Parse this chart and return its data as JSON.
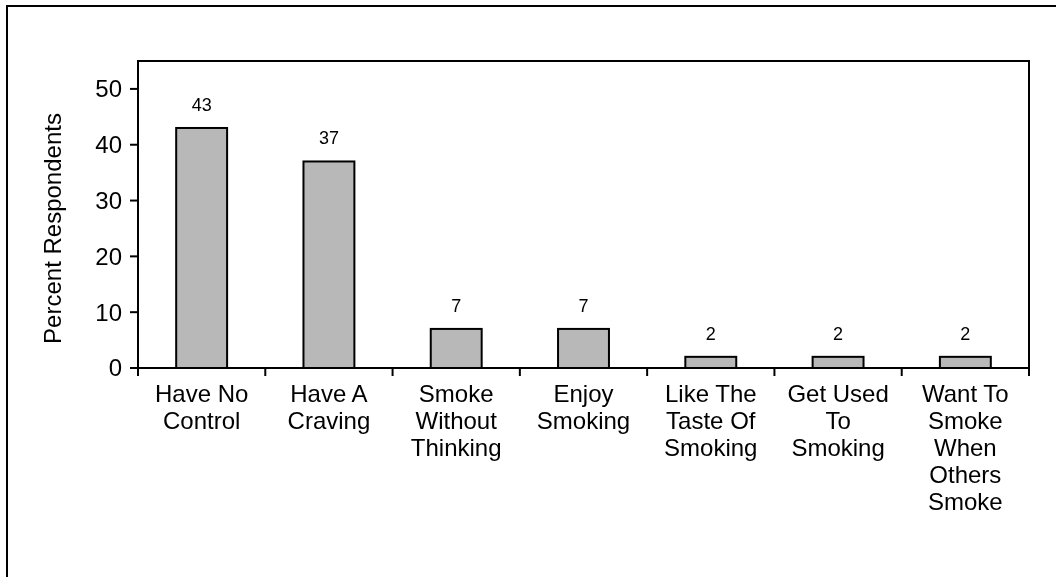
{
  "chart_data": {
    "type": "bar",
    "categories": [
      "Have No Control",
      "Have A Craving",
      "Smoke Without Thinking",
      "Enjoy Smoking",
      "Like The Taste Of Smoking",
      "Get Used To Smoking",
      "Want To Smoke When Others Smoke"
    ],
    "values": [
      43,
      37,
      7,
      7,
      2,
      2,
      2
    ],
    "color": "#b8b8b8",
    "ylabel": "Percent Respondents",
    "ylim": [
      0,
      55
    ],
    "yticks": [
      0,
      10,
      20,
      30,
      40,
      50
    ],
    "data_labels": true
  }
}
